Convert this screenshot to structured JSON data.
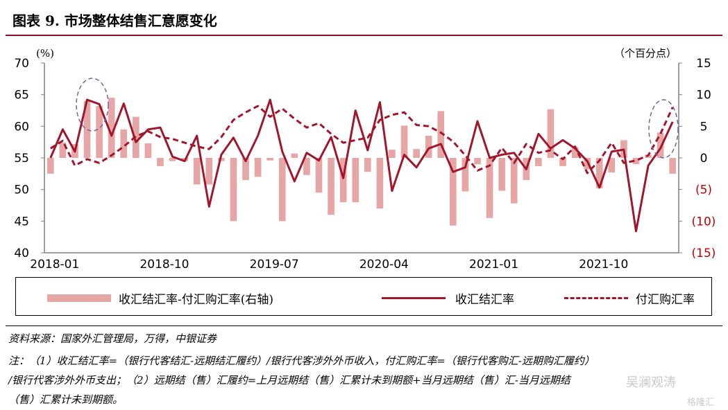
{
  "figure": {
    "title": "图表 9. 市场整体结售汇意愿变化"
  },
  "chart_data": {
    "type": "bar",
    "left_axis": {
      "unit": "(%)",
      "ylim": [
        40,
        70
      ],
      "ticks": [
        "40",
        "45",
        "50",
        "55",
        "60",
        "65",
        "70"
      ]
    },
    "right_axis": {
      "unit": "（个百分点）",
      "ylim": [
        -15,
        15
      ],
      "ticks": [
        "(15)",
        "(10)",
        "(5)",
        "0",
        "5",
        "10",
        "15"
      ]
    },
    "x_tick_labels": [
      "2018-01",
      "2018-10",
      "2019-07",
      "2020-04",
      "2021-01",
      "2021-10"
    ],
    "x_tick_index": [
      0,
      9,
      18,
      27,
      36,
      45
    ],
    "months_count": 52,
    "series": [
      {
        "name": "收汇结汇率-付汇购汇率(右轴)",
        "axis": "right",
        "kind": "bar",
        "values": [
          -2.5,
          2.4,
          2.2,
          9,
          8.2,
          9.5,
          4.5,
          6.5,
          2.3,
          -1.3,
          -0.5,
          -0.5,
          -4.2,
          -4.2,
          -0.5,
          -10,
          -3.5,
          -3,
          -0.4,
          -10,
          0.7,
          -2.7,
          -5.5,
          -9,
          -7,
          -7,
          -2.2,
          -8,
          1.3,
          5.1,
          1.4,
          3.5,
          7.4,
          -10.7,
          -5.3,
          -1,
          -9.5,
          -5.2,
          -7.2,
          -3.5,
          -1.3,
          7.7,
          -1.3,
          1.7,
          -1.8,
          -4.8,
          -2.3,
          2.8,
          -1,
          0.5,
          4,
          -2.5
        ]
      },
      {
        "name": "收汇结汇率",
        "axis": "left",
        "kind": "line",
        "values": [
          55,
          59.5,
          56,
          64.2,
          63.5,
          58.5,
          63.6,
          57.5,
          59.5,
          59.8,
          55.2,
          54.5,
          58.5,
          47.3,
          55.5,
          58.2,
          54.5,
          58.5,
          64.2,
          56,
          51.3,
          55.8,
          54.6,
          58.3,
          51.8,
          62.5,
          56.2,
          63.8,
          49.8,
          55.5,
          53.5,
          56.5,
          57.2,
          52.8,
          53.5,
          60.8,
          55,
          55.5,
          55.8,
          53.2,
          58.8,
          56.5,
          57.8,
          56.5,
          54.5,
          50.3,
          56,
          56.3,
          43.4,
          53.8,
          56.5,
          60.7
        ]
      },
      {
        "name": "付汇购汇率",
        "axis": "left",
        "kind": "line",
        "dashed": true,
        "values": [
          56.5,
          57.7,
          53.8,
          54.8,
          54.2,
          55.4,
          56.8,
          58.4,
          59.2,
          58.3,
          58,
          57.4,
          56.8,
          56.4,
          58.3,
          61,
          62.2,
          63.2,
          61.5,
          62.8,
          61.2,
          59.8,
          60.5,
          58.8,
          57.4,
          57.8,
          58.2,
          61,
          61.8,
          62.2,
          60.2,
          60,
          59,
          57.6,
          55.4,
          53,
          53.8,
          56.6,
          54.2,
          57.2,
          55.8,
          56.2,
          54.8,
          56.8,
          52.6,
          54.6,
          57.4,
          54.2,
          54.6,
          55.4,
          58.8,
          63
        ]
      }
    ],
    "colors": {
      "bar": "#e6a6a6",
      "line": "#a1162b",
      "axis": "#7f7f7f",
      "right_axis_labels": "#c00000",
      "highlight_circle": "#7b5ea7"
    }
  },
  "legend": {
    "bar_label": "收汇结汇率-付汇购汇率(右轴)",
    "solid_label": "收汇结汇率",
    "dash_label": "付汇购汇率"
  },
  "notes": {
    "source": "资料来源：国家外汇管理局，万得，中银证券",
    "line1": "注：（1）收汇结汇率=（银行代客结汇-远期结汇履约）/银行代客涉外外币收入，付汇购汇率=（银行代客购汇-远期购汇履约）",
    "line2": "/银行代客涉外外币支出；（2）远期结（售）汇履约=上月远期结（售）汇累计未到期额+当月远期结（售）汇-当月远期结",
    "line3": "（售）汇累计未到期额。"
  },
  "watermarks": {
    "wechat": "吴澜观涛",
    "site": "格隆汇"
  }
}
